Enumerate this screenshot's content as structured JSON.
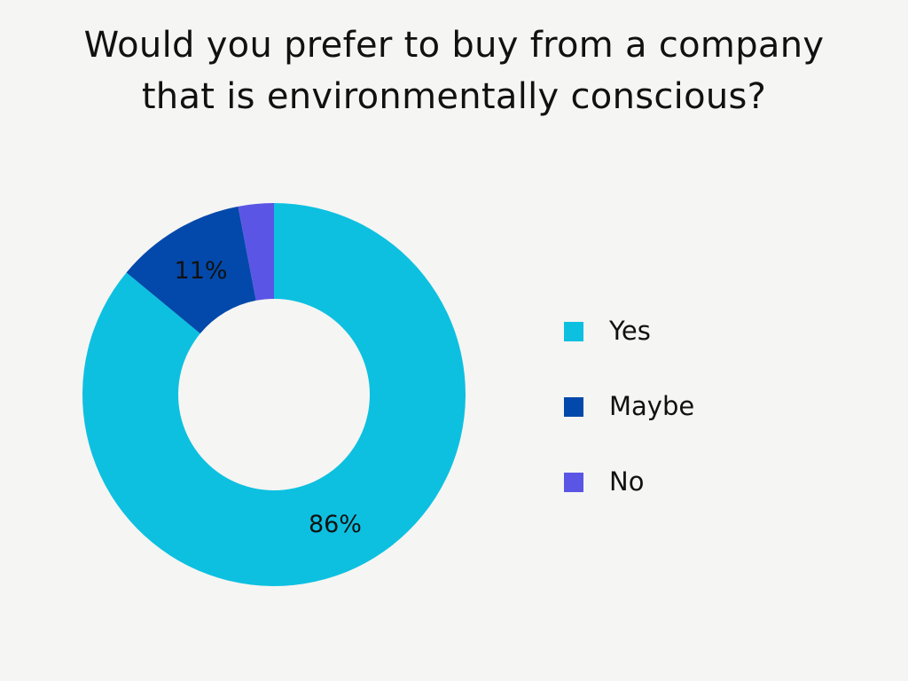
{
  "chart_data": {
    "type": "pie",
    "variant": "donut",
    "title": "Would you prefer to buy from a company that is environmentally conscious?",
    "title_lines": [
      "Would you prefer to buy from a company",
      "that is environmentally conscious?"
    ],
    "categories": [
      "Yes",
      "Maybe",
      "No"
    ],
    "values": [
      86,
      11,
      3
    ],
    "unit": "%",
    "data_labels": [
      "86%",
      "11%",
      ""
    ],
    "colors": [
      "#0dc0e0",
      "#0349ab",
      "#5b55e5"
    ],
    "legend": {
      "placement": "right",
      "entries": [
        "Yes",
        "Maybe",
        "No"
      ]
    }
  }
}
